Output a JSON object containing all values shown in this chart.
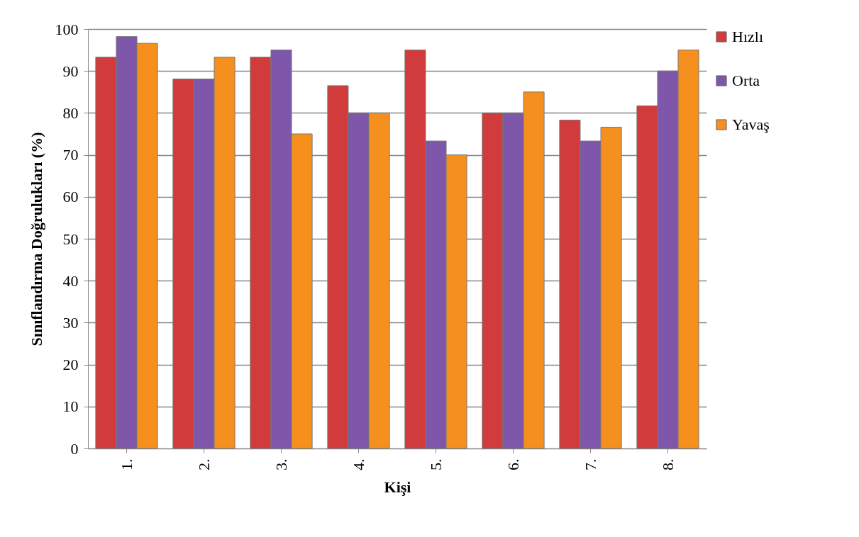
{
  "chart_data": {
    "type": "bar",
    "xlabel": "Kişi",
    "ylabel": "Sınıflandırma Doğrulukları (%)",
    "categories": [
      "1.",
      "2.",
      "3.",
      "4.",
      "5.",
      "6.",
      "7.",
      "8."
    ],
    "series": [
      {
        "name": "Hızlı",
        "color": "#d13b3b",
        "values": [
          93.3,
          88.1,
          93.3,
          86.5,
          95,
          80,
          78.3,
          81.7
        ]
      },
      {
        "name": "Orta",
        "color": "#7e57ab",
        "values": [
          98.2,
          88.1,
          95,
          80,
          73.3,
          80,
          73.3,
          90
        ]
      },
      {
        "name": "Yavaş",
        "color": "#f5901e",
        "values": [
          96.6,
          93.3,
          75,
          80,
          70,
          85,
          76.6,
          95
        ]
      }
    ],
    "ylim": [
      0,
      100
    ],
    "yticks": [
      0,
      10,
      20,
      30,
      40,
      50,
      60,
      70,
      80,
      90,
      100
    ],
    "grid": "y",
    "legend": "right"
  }
}
